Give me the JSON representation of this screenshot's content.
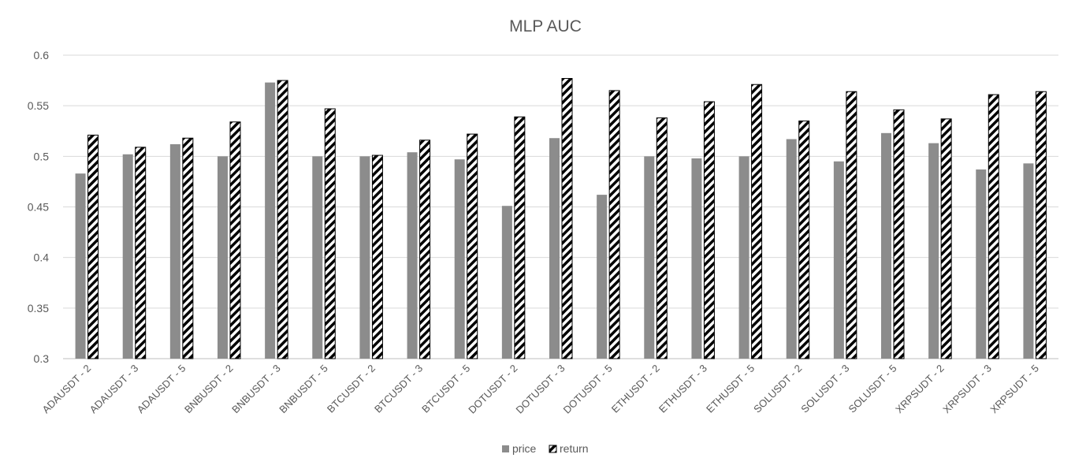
{
  "chart_data": {
    "type": "bar",
    "title": "MLP AUC",
    "xlabel": "",
    "ylabel": "",
    "ylim": [
      0.3,
      0.6
    ],
    "yticks": [
      "0.3",
      "0.35",
      "0.4",
      "0.45",
      "0.5",
      "0.55",
      "0.6"
    ],
    "grid": true,
    "legend_position": "bottom",
    "categories": [
      "ADAUSDT - 2",
      "ADAUSDT - 3",
      "ADAUSDT - 5",
      "BNBUSDT - 2",
      "BNBUSDT - 3",
      "BNBUSDT - 5",
      "BTCUSDT - 2",
      "BTCUSDT - 3",
      "BTCUSDT - 5",
      "DOTUSDT - 2",
      "DOTUSDT - 3",
      "DOTUSDT - 5",
      "ETHUSDT - 2",
      "ETHUSDT - 3",
      "ETHUSDT - 5",
      "SOLUSDT - 2",
      "SOLUSDT - 3",
      "SOLUSDT - 5",
      "XRPSUDT - 2",
      "XRPSUDT - 3",
      "XRPSUDT - 5"
    ],
    "series": [
      {
        "name": "price",
        "color": "#8c8c8c",
        "pattern": "solid",
        "values": [
          0.483,
          0.502,
          0.512,
          0.5,
          0.573,
          0.5,
          0.5,
          0.504,
          0.497,
          0.451,
          0.518,
          0.462,
          0.5,
          0.498,
          0.5,
          0.517,
          0.495,
          0.523,
          0.513,
          0.487,
          0.493
        ]
      },
      {
        "name": "return",
        "color": "#000000",
        "pattern": "diagonal-stripes",
        "values": [
          0.521,
          0.509,
          0.518,
          0.534,
          0.575,
          0.547,
          0.501,
          0.516,
          0.522,
          0.539,
          0.577,
          0.565,
          0.538,
          0.554,
          0.571,
          0.535,
          0.564,
          0.546,
          0.537,
          0.561,
          0.564
        ]
      }
    ]
  }
}
